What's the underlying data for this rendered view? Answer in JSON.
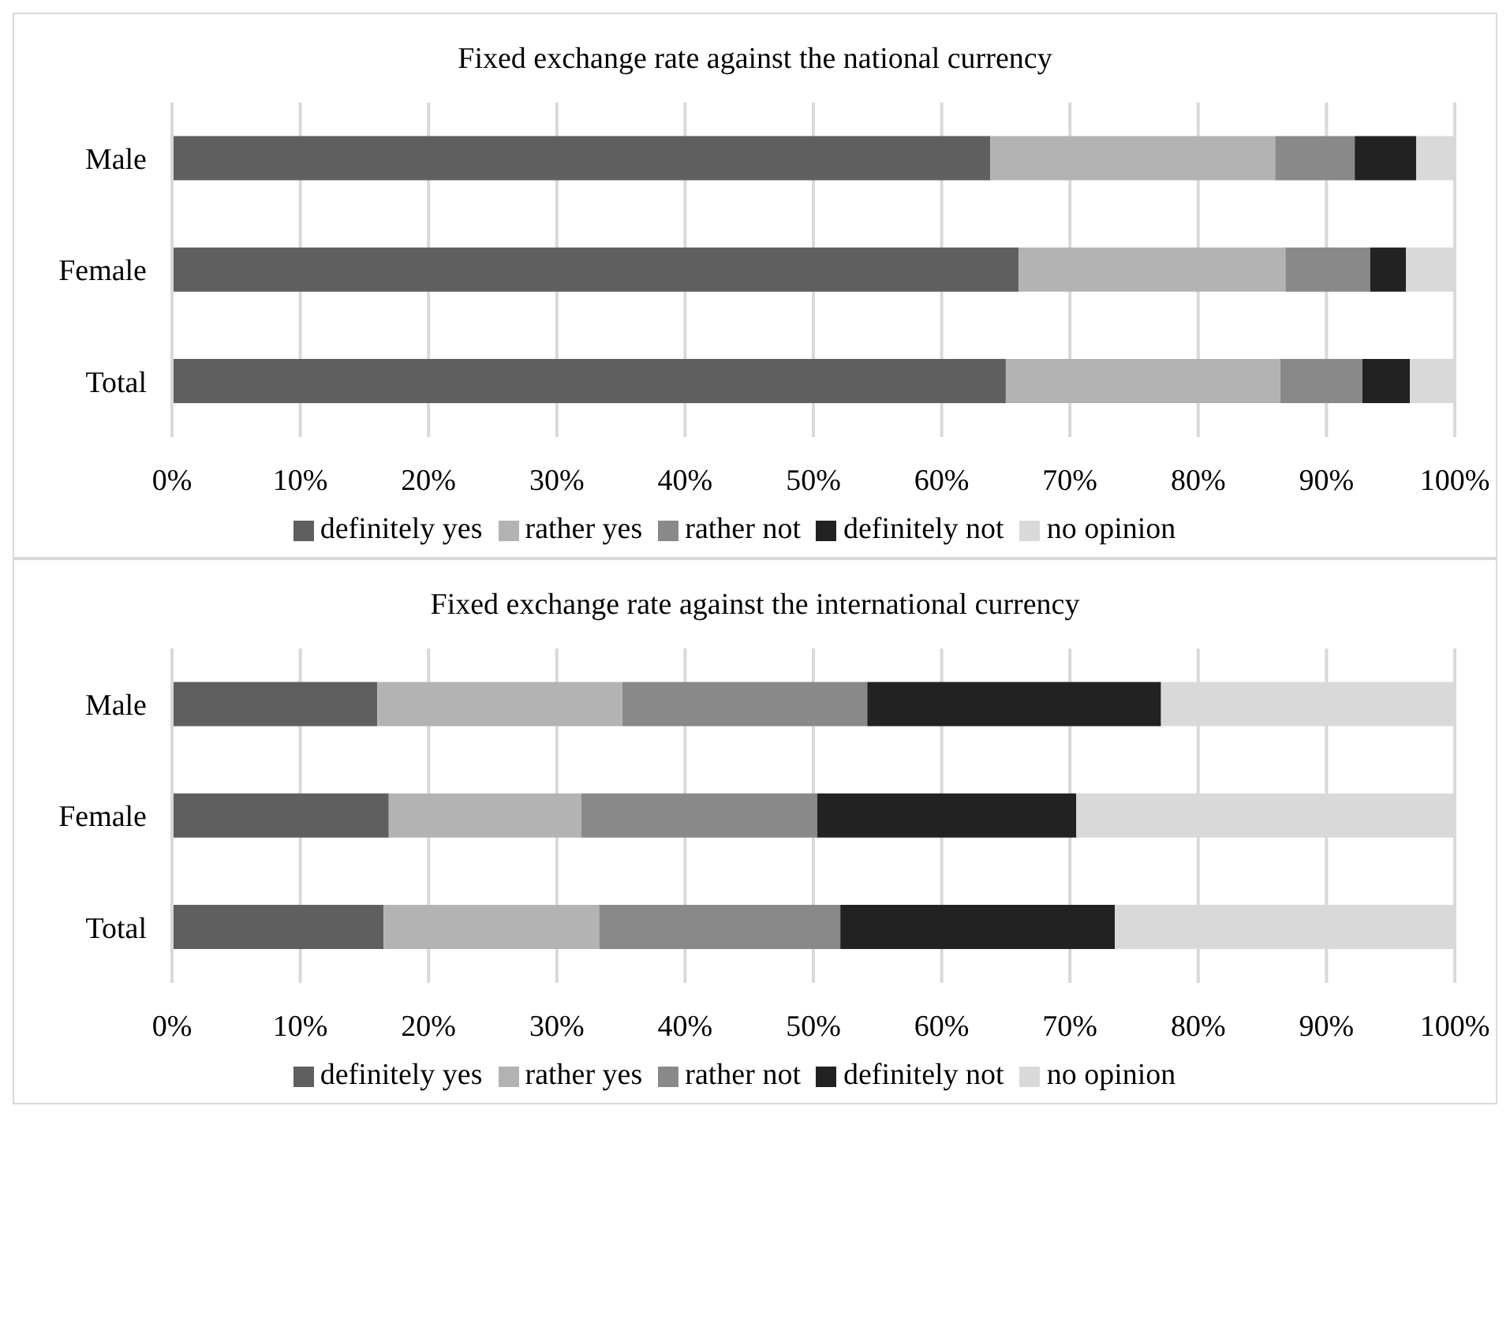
{
  "chart_data": [
    {
      "type": "bar",
      "orientation": "horizontal",
      "stacked": true,
      "title": "Fixed exchange rate against the national currency",
      "categories": [
        "Male",
        "Female",
        "Total"
      ],
      "series": [
        {
          "name": "definitely yes",
          "color": "#5f5f5f",
          "values": [
            63.8,
            66.0,
            65.0
          ]
        },
        {
          "name": "rather yes",
          "color": "#b3b3b3",
          "values": [
            22.2,
            20.8,
            21.4
          ]
        },
        {
          "name": "rather not",
          "color": "#898989",
          "values": [
            6.2,
            6.6,
            6.4
          ]
        },
        {
          "name": "definitely not",
          "color": "#222222",
          "values": [
            4.8,
            2.8,
            3.7
          ]
        },
        {
          "name": "no opinion",
          "color": "#d9d9d9",
          "values": [
            3.0,
            3.8,
            3.5
          ]
        }
      ],
      "xlim": [
        0,
        100
      ],
      "xticks": [
        {
          "value": 0,
          "label": "0%"
        },
        {
          "value": 10,
          "label": "10%"
        },
        {
          "value": 20,
          "label": "20%"
        },
        {
          "value": 30,
          "label": "30%"
        },
        {
          "value": 40,
          "label": "40%"
        },
        {
          "value": 50,
          "label": "50%"
        },
        {
          "value": 60,
          "label": "60%"
        },
        {
          "value": 70,
          "label": "70%"
        },
        {
          "value": 80,
          "label": "80%"
        },
        {
          "value": 90,
          "label": "90%"
        },
        {
          "value": 100,
          "label": "100%"
        }
      ],
      "grid": "x",
      "legend": "bottom"
    },
    {
      "type": "bar",
      "orientation": "horizontal",
      "stacked": true,
      "title": "Fixed exchange rate against the international currency",
      "categories": [
        "Male",
        "Female",
        "Total"
      ],
      "series": [
        {
          "name": "definitely yes",
          "color": "#5f5f5f",
          "values": [
            16.0,
            16.9,
            16.5
          ]
        },
        {
          "name": "rather yes",
          "color": "#b3b3b3",
          "values": [
            19.1,
            15.0,
            16.8
          ]
        },
        {
          "name": "rather not",
          "color": "#898989",
          "values": [
            19.1,
            18.4,
            18.8
          ]
        },
        {
          "name": "definitely not",
          "color": "#222222",
          "values": [
            22.9,
            20.2,
            21.4
          ]
        },
        {
          "name": "no opinion",
          "color": "#d9d9d9",
          "values": [
            22.9,
            29.5,
            26.5
          ]
        }
      ],
      "xlim": [
        0,
        100
      ],
      "xticks": [
        {
          "value": 0,
          "label": "0%"
        },
        {
          "value": 10,
          "label": "10%"
        },
        {
          "value": 20,
          "label": "20%"
        },
        {
          "value": 30,
          "label": "30%"
        },
        {
          "value": 40,
          "label": "40%"
        },
        {
          "value": 50,
          "label": "50%"
        },
        {
          "value": 60,
          "label": "60%"
        },
        {
          "value": 70,
          "label": "70%"
        },
        {
          "value": 80,
          "label": "80%"
        },
        {
          "value": 90,
          "label": "90%"
        },
        {
          "value": 100,
          "label": "100%"
        }
      ],
      "grid": "x",
      "legend": "bottom"
    }
  ]
}
